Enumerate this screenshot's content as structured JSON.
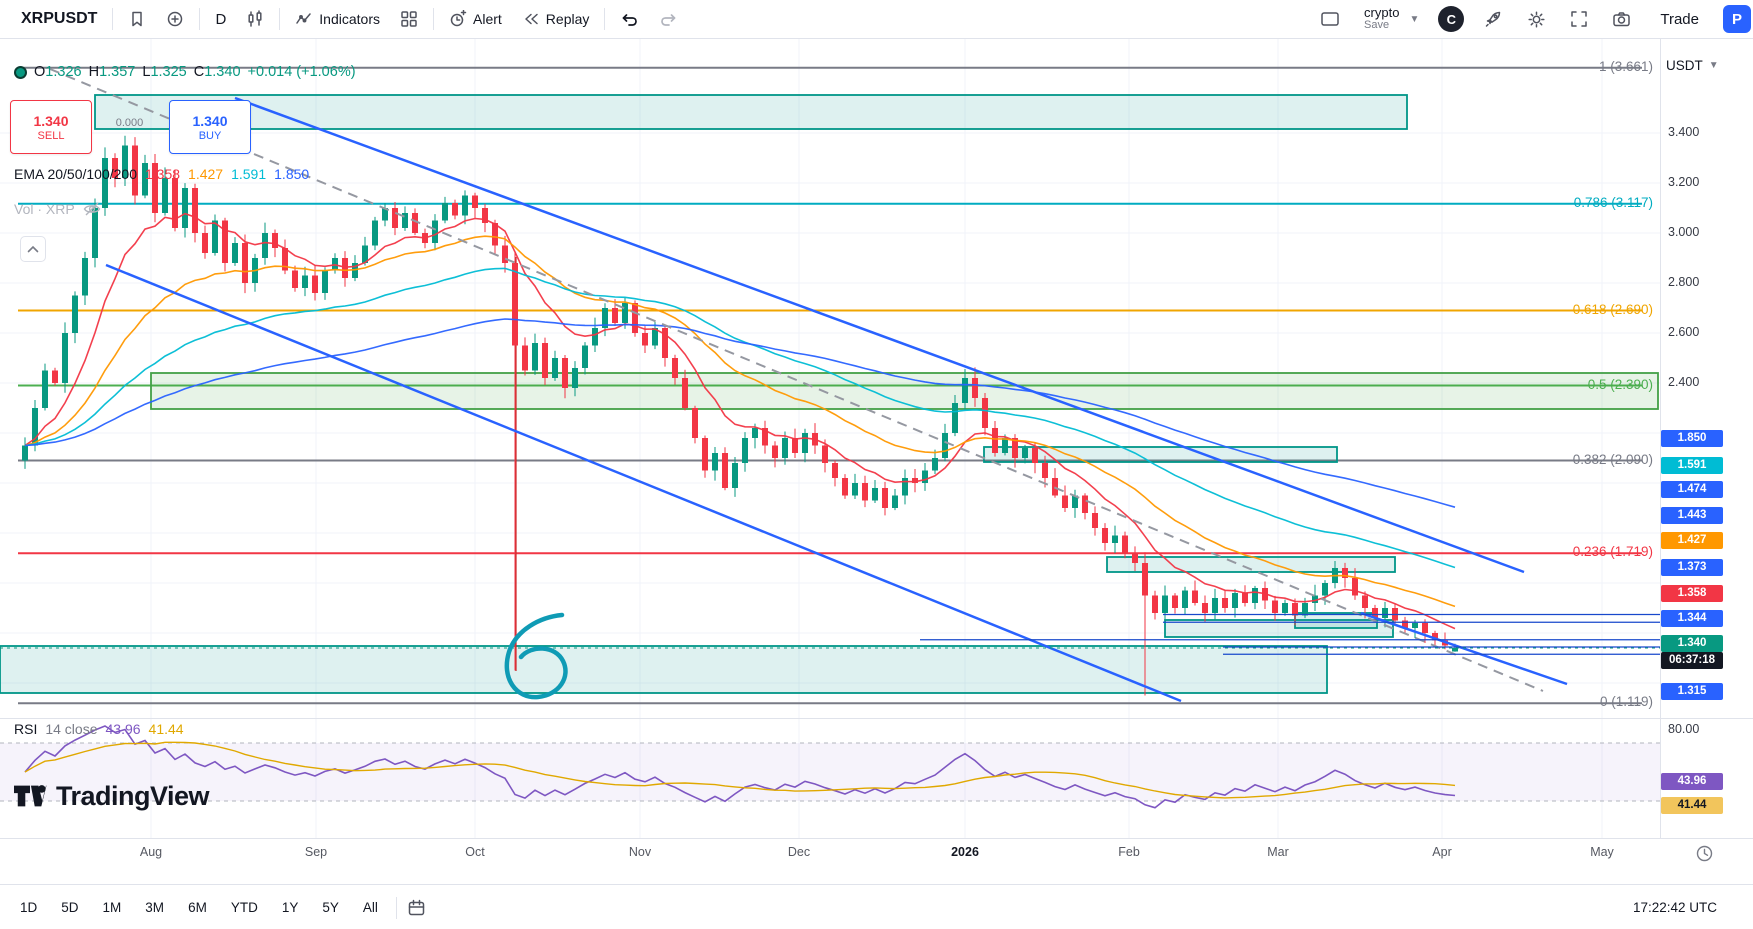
{
  "toolbar": {
    "symbol": "XRPUSDT",
    "interval": "D",
    "indicators_label": "Indicators",
    "alert_label": "Alert",
    "replay_label": "Replay",
    "layout_name": "crypto",
    "save_label": "Save",
    "avatar_initial": "C",
    "trade_label": "Trade",
    "paper_initial": "P"
  },
  "legend": {
    "ohlc": {
      "o_label": "O",
      "o": "1.326",
      "h_label": "H",
      "h": "1.357",
      "l_label": "L",
      "l": "1.325",
      "c_label": "C",
      "c": "1.340",
      "change": "+0.014 (+1.06%)"
    },
    "sell_button": {
      "price": "1.340",
      "label": "SELL"
    },
    "buy_button": {
      "price": "1.340",
      "label": "BUY"
    },
    "spread": "0.000",
    "ema_label": "EMA 20/50/100/200",
    "ema_values": [
      {
        "value": "1.358",
        "color": "#f23645"
      },
      {
        "value": "1.427",
        "color": "#ff9800"
      },
      {
        "value": "1.591",
        "color": "#00bcd4"
      },
      {
        "value": "1.850",
        "color": "#2962ff"
      }
    ],
    "volume_label": "Vol · XRP"
  },
  "price_axis": {
    "unit": "USDT",
    "tags": [
      {
        "label": "1.850",
        "bg": "#2962ff",
        "fg": "#ffffff"
      },
      {
        "label": "1.591",
        "bg": "#00bcd4",
        "fg": "#ffffff"
      },
      {
        "label": "1.474",
        "bg": "#2962ff",
        "fg": "#ffffff"
      },
      {
        "label": "1.443",
        "bg": "#2962ff",
        "fg": "#ffffff"
      },
      {
        "label": "1.427",
        "bg": "#ff9800",
        "fg": "#ffffff"
      },
      {
        "label": "1.373",
        "bg": "#2962ff",
        "fg": "#ffffff"
      },
      {
        "label": "1.358",
        "bg": "#f23645",
        "fg": "#ffffff"
      },
      {
        "label": "1.344",
        "bg": "#2962ff",
        "fg": "#ffffff"
      },
      {
        "label": "1.340",
        "bg": "#089981",
        "fg": "#ffffff",
        "countdown": "06:37:18",
        "countdown_bg": "#131722"
      },
      {
        "label": "1.315",
        "bg": "#2962ff",
        "fg": "#ffffff"
      }
    ]
  },
  "fib": {
    "levels": [
      {
        "label": "1 (3.661)",
        "price": 3.661,
        "color": "#787b86"
      },
      {
        "label": "0.786 (3.117)",
        "price": 3.117,
        "color": "#00acc1"
      },
      {
        "label": "0.618 (2.690)",
        "price": 2.69,
        "color": "#f0a500"
      },
      {
        "label": "0.5 (2.390)",
        "price": 2.39,
        "color": "#4caf50"
      },
      {
        "label": "0.382 (2.090)",
        "price": 2.09,
        "color": "#787b86"
      },
      {
        "label": "0.236 (1.719)",
        "price": 1.719,
        "color": "#f23645"
      },
      {
        "label": "0 (1.119)",
        "price": 1.119,
        "color": "#787b86"
      }
    ]
  },
  "rsi": {
    "title": "RSI",
    "params": "14 close",
    "value": "43.96",
    "ma_value": "41.44",
    "top_label": "80.00",
    "line_color": "#7e57c2",
    "ma_color": "#e0a800",
    "tag_value_bg": "#7e57c2",
    "tag_ma_bg": "#f2c55c"
  },
  "watermark": "TradingView",
  "bottom_toolbar": {
    "ranges": [
      "1D",
      "5D",
      "1M",
      "3M",
      "6M",
      "YTD",
      "1Y",
      "5Y",
      "All"
    ],
    "clock": "17:22:42 UTC"
  },
  "chart_data": {
    "type": "candlestick",
    "symbol": "XRPUSDT",
    "interval": "D",
    "title": "XRPUSDT daily chart with EMA 20/50/100/200, Fib retracement and RSI",
    "x_labels": [
      "Aug",
      "Sep",
      "Oct",
      "Nov",
      "Dec",
      "2026",
      "Feb",
      "Mar",
      "Apr",
      "May"
    ],
    "y_ticks": [
      "3.400",
      "3.200",
      "3.000",
      "2.800",
      "2.600",
      "2.400"
    ],
    "y_range_visible": [
      1.1,
      3.7
    ],
    "current_ohlc": {
      "open": 1.326,
      "high": 1.357,
      "low": 1.325,
      "close": 1.34,
      "change": 0.014,
      "change_pct": 1.06
    },
    "closes": [
      2.15,
      2.3,
      2.45,
      2.4,
      2.6,
      2.75,
      2.9,
      3.1,
      3.3,
      3.22,
      3.35,
      3.15,
      3.28,
      3.08,
      3.22,
      3.02,
      3.18,
      3.0,
      2.92,
      3.05,
      2.88,
      2.96,
      2.8,
      2.9,
      3.0,
      2.94,
      2.85,
      2.78,
      2.83,
      2.76,
      2.85,
      2.9,
      2.82,
      2.88,
      2.95,
      3.05,
      3.1,
      3.02,
      3.08,
      3.0,
      2.96,
      3.05,
      3.12,
      3.07,
      3.15,
      3.1,
      3.04,
      2.95,
      2.88,
      2.55,
      2.45,
      2.56,
      2.42,
      2.5,
      2.38,
      2.46,
      2.55,
      2.62,
      2.7,
      2.64,
      2.72,
      2.6,
      2.55,
      2.62,
      2.5,
      2.42,
      2.3,
      2.18,
      2.05,
      2.12,
      1.98,
      2.08,
      2.18,
      2.22,
      2.15,
      2.1,
      2.18,
      2.12,
      2.2,
      2.15,
      2.08,
      2.02,
      1.95,
      2.0,
      1.93,
      1.98,
      1.9,
      1.95,
      2.02,
      2.0,
      2.05,
      2.1,
      2.2,
      2.32,
      2.42,
      2.34,
      2.22,
      2.12,
      2.18,
      2.1,
      2.14,
      2.08,
      2.02,
      1.95,
      1.9,
      1.95,
      1.88,
      1.82,
      1.76,
      1.79,
      1.72,
      1.68,
      1.55,
      1.48,
      1.55,
      1.5,
      1.57,
      1.52,
      1.48,
      1.54,
      1.5,
      1.56,
      1.52,
      1.58,
      1.53,
      1.48,
      1.52,
      1.47,
      1.52,
      1.55,
      1.6,
      1.66,
      1.62,
      1.55,
      1.5,
      1.46,
      1.5,
      1.45,
      1.42,
      1.44,
      1.4,
      1.37,
      1.35,
      1.34
    ],
    "wick_overrides": {
      "49": {
        "low": 1.25
      },
      "112": {
        "low": 1.15
      },
      "143": {
        "open": 1.326,
        "high": 1.357,
        "low": 1.325
      }
    },
    "ema_periods": [
      20,
      50,
      100,
      200
    ],
    "ema_last_values": [
      1.358,
      1.427,
      1.591,
      1.85
    ],
    "horizontal_levels": [
      1.474,
      1.443,
      1.373,
      1.344,
      1.315
    ],
    "current_price": 1.34,
    "fib_retracement": {
      "high": 3.661,
      "low": 1.119,
      "levels": [
        3.661,
        3.117,
        2.69,
        2.39,
        2.09,
        1.719,
        1.119
      ]
    },
    "rsi": {
      "period": 14,
      "current": 43.96,
      "ma": 41.44,
      "upper_band": 70,
      "lower_band": 30
    },
    "hand_drawn_mark": "6"
  }
}
